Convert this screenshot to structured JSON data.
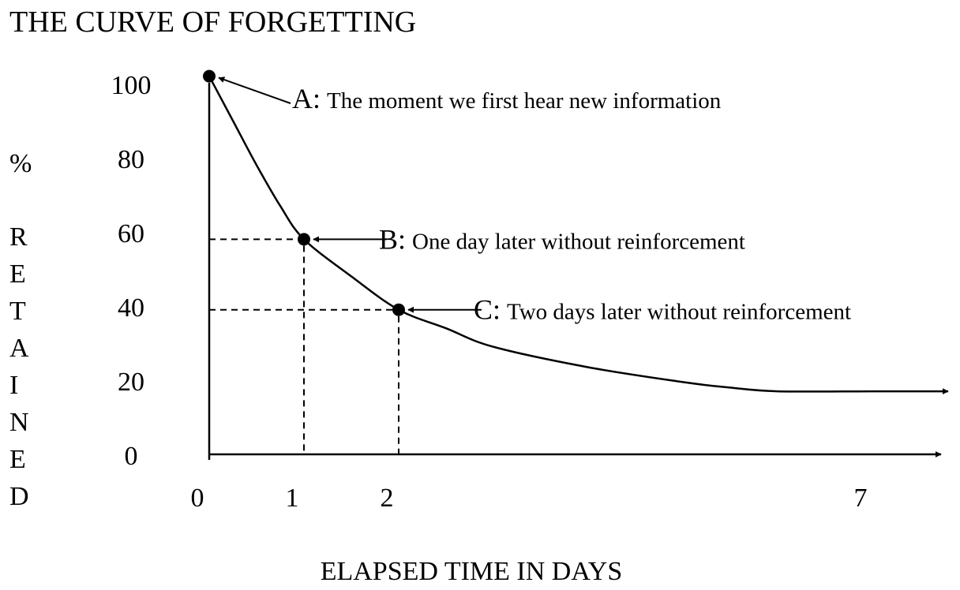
{
  "chart_data": {
    "type": "line",
    "title": "THE CURVE OF FORGETTING",
    "xlabel": "ELAPSED TIME IN DAYS",
    "ylabel_prefix": "%",
    "ylabel": "RETAINED",
    "x_ticks": [
      {
        "value": 0,
        "label": "0"
      },
      {
        "value": 1,
        "label": "1"
      },
      {
        "value": 2,
        "label": "2"
      },
      {
        "value": 7,
        "label": "7"
      }
    ],
    "y_ticks": [
      {
        "value": 0,
        "label": "0"
      },
      {
        "value": 20,
        "label": "20"
      },
      {
        "value": 40,
        "label": "40"
      },
      {
        "value": 60,
        "label": "60"
      },
      {
        "value": 80,
        "label": "80"
      },
      {
        "value": 100,
        "label": "100"
      }
    ],
    "xlim": [
      0,
      7.8
    ],
    "ylim": [
      0,
      100
    ],
    "grid": false,
    "series": [
      {
        "x": [
          0,
          0.25,
          0.5,
          0.75,
          1,
          1.5,
          2,
          2.5,
          3,
          4,
          5,
          5.5,
          6,
          7,
          7.8
        ],
        "values": [
          102,
          90,
          78,
          67,
          58,
          48,
          39,
          34,
          29,
          23.5,
          19.5,
          18,
          17,
          17,
          17
        ]
      }
    ],
    "points": [
      {
        "id": "A",
        "x": 0,
        "y": 102,
        "label": "A:",
        "text": "The moment we first hear new information"
      },
      {
        "id": "B",
        "x": 1,
        "y": 58,
        "label": "B:",
        "text": "One day later without reinforcement"
      },
      {
        "id": "C",
        "x": 2,
        "y": 39,
        "label": "C:",
        "text": "Two days later without reinforcement"
      }
    ],
    "colors": {
      "ink": "#000000",
      "background": "#ffffff"
    }
  }
}
